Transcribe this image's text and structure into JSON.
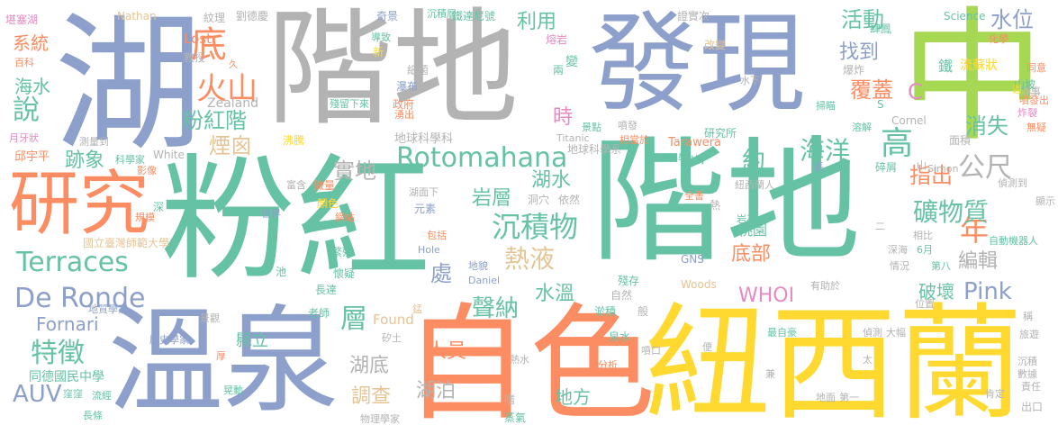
{
  "palette": {
    "green": "#66c2a5",
    "orange": "#fc8d62",
    "blue": "#8da0cb",
    "pink": "#e78ac3",
    "lime": "#a6d854",
    "yellow": "#ffd92f",
    "tan": "#e5c494",
    "gray": "#b3b3b3"
  },
  "words": {
    "w1": "粉紅",
    "w2": "階地",
    "w3": "階地",
    "w4": "湖",
    "w5": "發現",
    "w6": "中",
    "w7": "溫泉",
    "w8": "自色",
    "w9": "紐西蘭",
    "w10": "研究",
    "w11": "火山",
    "w12": "底",
    "w13": "粉紅階",
    "w14": "Rotomahana",
    "w15": "沉積物",
    "w16": "熱液",
    "w17": "岩層",
    "w18": "湖水",
    "w19": "Terraces",
    "w20": "De Ronde",
    "w21": "特徵",
    "w22": "AUV",
    "w23": "系統",
    "w24": "海水",
    "w25": "說",
    "w26": "跡象",
    "w27": "Fornari",
    "w28": "同德國民中學",
    "w29": "湖底",
    "w30": "湖泊",
    "w31": "調查",
    "w32": "人員",
    "w33": "地方",
    "w34": "聲納",
    "w35": "水溫",
    "w36": "處",
    "w37": "層",
    "w38": "Found",
    "w39": "WHOI",
    "w40": "Pink",
    "w41": "破壞",
    "w42": "編輯",
    "w43": "年",
    "w44": "礦物質",
    "w45": "公尺",
    "w46": "消失",
    "w47": "水位",
    "w48": "活動",
    "w49": "覆蓋",
    "w50": "找到",
    "w51": "利用",
    "w52": "時",
    "w53": "海洋",
    "w54": "高",
    "w55": "指出",
    "w56": "底部",
    "w57": "桃園",
    "w58": "約",
    "w59": "實地",
    "w60": "煙囪",
    "w61": "C",
    "w62": "鐵",
    "w63": "流蘇狀",
    "w64": "縣立",
    "w65": "Nathan",
    "w66": "堪塞湖",
    "w67": "紋理",
    "w68": "劉德慶",
    "w69": "奇景",
    "w70": "鐵達尼號",
    "w71": "證實次",
    "w72": "Science",
    "w73": "沉積層",
    "w74": "肆鳳",
    "w75": "教授",
    "w76": "Zealand",
    "w77": "Lost",
    "w78": "久",
    "w79": "新",
    "w80": "細菌",
    "w81": "瀑布",
    "w82": "熔岩",
    "w83": "兩",
    "w84": "變",
    "w85": "改變",
    "w86": "化學",
    "w87": "同意",
    "w88": "同事",
    "w89": "山坡",
    "w90": "爆炸",
    "w91": "水下",
    "w92": "Cornel",
    "w93": "Tarawera",
    "w94": "地球科學科",
    "w95": "地球科學系",
    "w96": "研究所",
    "w97": "相當於",
    "w98": "Titanic",
    "w99": "景點",
    "w100": "噴發",
    "w101": "殘留下來",
    "w102": "政府",
    "w103": "沸騰",
    "w104": "邱宇平",
    "w105": "測量到",
    "w106": "月牙狀",
    "w107": "科學家",
    "w108": "White",
    "w109": "影像",
    "w110": "微量",
    "w111": "富含",
    "w112": "顏色",
    "w113": "網站",
    "w114": "湖面下",
    "w115": "元素",
    "w116": "洞穴",
    "w117": "依然",
    "w118": "機構",
    "w119": "紐西蘭人",
    "w120": "碎屑",
    "w121": "Simon",
    "w122": "偵測到",
    "w123": "顯示",
    "w124": "岩石",
    "w125": "熱",
    "w126": "全書",
    "w127": "相比",
    "w128": "6月",
    "w129": "自動機器人",
    "w130": "深海",
    "w131": "第八",
    "w132": "情況",
    "w133": "GNS",
    "w134": "有助於",
    "w135": "位置",
    "w136": "Woods",
    "w137": "殘存",
    "w138": "自然",
    "w139": "淤積",
    "w140": "般",
    "w141": "地貌",
    "w142": "Daniel",
    "w143": "Hole",
    "w144": "包括",
    "w145": "繁殖",
    "w146": "懷疑",
    "w147": "長達",
    "w148": "老師",
    "w149": "池",
    "w150": "世界",
    "w151": "規模",
    "w152": "深",
    "w153": "國立臺灣師範大學",
    "w154": "景觀",
    "w155": "歷史學家",
    "w156": "地質學家",
    "w157": "窪窪",
    "w158": "流經",
    "w159": "長條",
    "w160": "晃動",
    "w161": "厚",
    "w162": "矽土",
    "w163": "錳",
    "w164": "噴口",
    "w165": "熱水",
    "w166": "泉水",
    "w167": "分析",
    "w168": "便",
    "w169": "最自豪",
    "w170": "偵測",
    "w171": "大幅",
    "w172": "太",
    "w173": "兼",
    "w174": "地面",
    "w175": "第一",
    "w176": "旅遊",
    "w177": "稱",
    "w178": "沉積",
    "w179": "數據",
    "w180": "責任",
    "w181": "肯定",
    "w182": "出口",
    "w183": "物理學家",
    "w184": "蒸氣",
    "w185": "嗜",
    "w186": "面積",
    "w187": "溶解",
    "w188": "掃瞄",
    "w189": "長",
    "w190": "科學",
    "w191": "S",
    "w192": "導致",
    "w193": "湧出",
    "w194": "百科",
    "w195": "噴發出",
    "w196": "週",
    "w197": "無疑",
    "w198": "炸裂",
    "w199": "山",
    "w200": "二",
    "w201": "Terraces"
  }
}
